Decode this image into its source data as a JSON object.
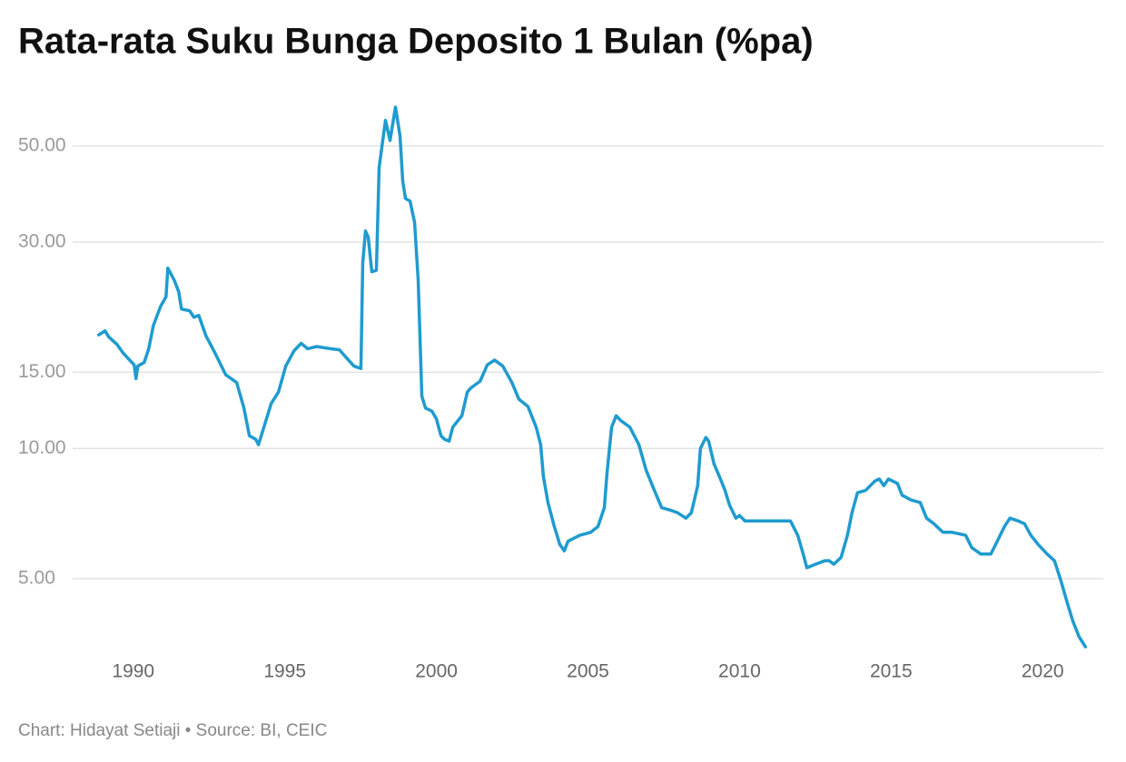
{
  "chart_data": {
    "type": "line",
    "title": "Rata-rata Suku Bunga Deposito 1 Bulan (%pa)",
    "source": "Chart: Hidayat Setiaji • Source: BI, CEIC",
    "color": "#1f9bcf",
    "yscale": "log",
    "grid": true,
    "xlim": [
      1988,
      2022
    ],
    "xticks": [
      1990,
      1995,
      2000,
      2005,
      2010,
      2015,
      2020
    ],
    "ylim": [
      3.3,
      67
    ],
    "yticks": [
      {
        "value": 5,
        "label": "5.00"
      },
      {
        "value": 10,
        "label": "10.00"
      },
      {
        "value": 15,
        "label": "15.00"
      },
      {
        "value": 30,
        "label": "30.00"
      },
      {
        "value": 50,
        "label": "50.00"
      }
    ],
    "x": [
      1988.86,
      1989.07,
      1989.19,
      1989.46,
      1989.67,
      1989.88,
      1990.03,
      1990.09,
      1990.15,
      1990.36,
      1990.51,
      1990.66,
      1990.9,
      1991.08,
      1991.14,
      1991.35,
      1991.5,
      1991.59,
      1991.86,
      1992.0,
      1992.16,
      1992.4,
      1992.7,
      1993.05,
      1993.41,
      1993.65,
      1993.83,
      1994.04,
      1994.13,
      1994.31,
      1994.55,
      1994.79,
      1995.03,
      1995.3,
      1995.54,
      1995.75,
      1996.05,
      1996.5,
      1996.8,
      1997.1,
      1997.28,
      1997.51,
      1997.57,
      1997.66,
      1997.75,
      1997.87,
      1998.02,
      1998.11,
      1998.32,
      1998.47,
      1998.65,
      1998.8,
      1998.89,
      1998.98,
      1999.13,
      1999.28,
      1999.4,
      1999.52,
      1999.64,
      1999.85,
      2000.0,
      2000.15,
      2000.27,
      2000.42,
      2000.54,
      2000.84,
      2001.02,
      2001.14,
      2001.44,
      2001.68,
      2001.92,
      2002.19,
      2002.49,
      2002.72,
      2003.02,
      2003.29,
      2003.44,
      2003.53,
      2003.68,
      2003.89,
      2004.07,
      2004.22,
      2004.34,
      2004.73,
      2005.09,
      2005.33,
      2005.54,
      2005.63,
      2005.78,
      2005.93,
      2006.08,
      2006.38,
      2006.68,
      2006.92,
      2007.19,
      2007.43,
      2007.72,
      2007.96,
      2008.23,
      2008.41,
      2008.62,
      2008.71,
      2008.89,
      2008.98,
      2009.16,
      2009.37,
      2009.52,
      2009.67,
      2009.88,
      2010.0,
      2010.18,
      2010.57,
      2011.02,
      2011.32,
      2011.68,
      2011.92,
      2012.1,
      2012.22,
      2012.51,
      2012.81,
      2012.96,
      2013.11,
      2013.35,
      2013.56,
      2013.71,
      2013.89,
      2014.16,
      2014.46,
      2014.61,
      2014.76,
      2014.91,
      2015.21,
      2015.36,
      2015.66,
      2015.96,
      2016.17,
      2016.41,
      2016.71,
      2017.01,
      2017.46,
      2017.66,
      2017.96,
      2018.29,
      2018.5,
      2018.74,
      2018.92,
      2019.19,
      2019.4,
      2019.61,
      2019.85,
      2020.15,
      2020.39,
      2020.6,
      2020.81,
      2020.99,
      2021.2,
      2021.41
    ],
    "values": [
      18.3,
      18.7,
      18.1,
      17.4,
      16.6,
      16.0,
      15.6,
      14.5,
      15.5,
      15.8,
      17.0,
      19.2,
      21.3,
      22.4,
      26.1,
      24.5,
      23.0,
      21.0,
      20.8,
      20.1,
      20.3,
      18.2,
      16.6,
      14.8,
      14.2,
      12.4,
      10.7,
      10.5,
      10.2,
      11.2,
      12.7,
      13.5,
      15.5,
      16.8,
      17.5,
      17.0,
      17.2,
      17.0,
      16.9,
      16.0,
      15.5,
      15.3,
      26.8,
      31.8,
      30.8,
      25.6,
      25.8,
      44.6,
      57.3,
      51.5,
      61.5,
      52.7,
      41.4,
      37.8,
      37.3,
      33.3,
      24.4,
      13.2,
      12.4,
      12.2,
      11.7,
      10.7,
      10.5,
      10.4,
      11.2,
      11.9,
      13.5,
      13.8,
      14.3,
      15.6,
      16.0,
      15.5,
      14.2,
      13.0,
      12.5,
      11.2,
      10.2,
      8.6,
      7.5,
      6.6,
      6.0,
      5.8,
      6.1,
      6.3,
      6.4,
      6.6,
      7.3,
      8.8,
      11.2,
      11.9,
      11.6,
      11.2,
      10.2,
      8.9,
      8.0,
      7.3,
      7.2,
      7.1,
      6.9,
      7.1,
      8.2,
      10.0,
      10.6,
      10.4,
      9.2,
      8.5,
      8.0,
      7.4,
      6.9,
      7.0,
      6.8,
      6.8,
      6.8,
      6.8,
      6.8,
      6.3,
      5.7,
      5.3,
      5.4,
      5.5,
      5.5,
      5.4,
      5.6,
      6.3,
      7.1,
      7.9,
      8.0,
      8.4,
      8.5,
      8.2,
      8.5,
      8.3,
      7.8,
      7.6,
      7.5,
      6.9,
      6.7,
      6.4,
      6.4,
      6.3,
      5.9,
      5.7,
      5.7,
      6.1,
      6.6,
      6.9,
      6.8,
      6.7,
      6.3,
      6.0,
      5.7,
      5.5,
      4.95,
      4.4,
      4.0,
      3.67,
      3.48
    ]
  }
}
